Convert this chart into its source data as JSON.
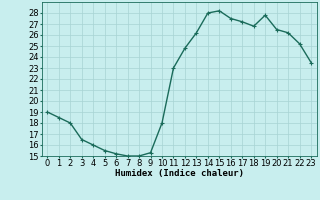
{
  "x": [
    0,
    1,
    2,
    3,
    4,
    5,
    6,
    7,
    8,
    9,
    10,
    11,
    12,
    13,
    14,
    15,
    16,
    17,
    18,
    19,
    20,
    21,
    22,
    23
  ],
  "y": [
    19,
    18.5,
    18,
    16.5,
    16,
    15.5,
    15.2,
    15,
    15,
    15.3,
    18,
    23,
    24.8,
    26.2,
    28,
    28.2,
    27.5,
    27.2,
    26.8,
    27.8,
    26.5,
    26.2,
    25.2,
    23.5
  ],
  "line_color": "#1a6b5a",
  "marker_color": "#1a6b5a",
  "bg_color": "#c8eeee",
  "grid_color": "#a8d4d4",
  "xlabel": "Humidex (Indice chaleur)",
  "ylim": [
    15,
    29
  ],
  "xlim": [
    -0.5,
    23.5
  ],
  "yticks": [
    15,
    16,
    17,
    18,
    19,
    20,
    21,
    22,
    23,
    24,
    25,
    26,
    27,
    28
  ],
  "xticks": [
    0,
    1,
    2,
    3,
    4,
    5,
    6,
    7,
    8,
    9,
    10,
    11,
    12,
    13,
    14,
    15,
    16,
    17,
    18,
    19,
    20,
    21,
    22,
    23
  ],
  "xlabel_fontsize": 6.5,
  "tick_fontsize": 6,
  "linewidth": 1.0,
  "markersize": 2.5
}
